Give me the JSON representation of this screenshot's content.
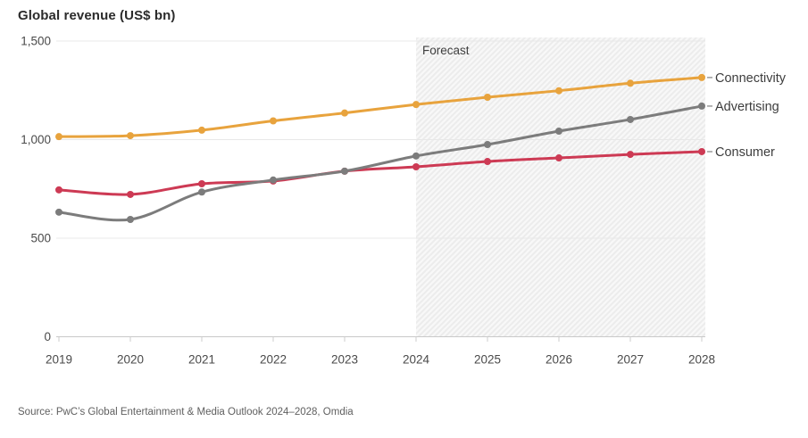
{
  "header": {
    "title": "Global revenue (US$ bn)"
  },
  "footer": {
    "source": "Source: PwC’s Global Entertainment & Media Outlook 2024–2028, Omdia"
  },
  "chart_data": {
    "type": "line",
    "title": "Global revenue (US$ bn)",
    "categories": [
      "2019",
      "2020",
      "2021",
      "2022",
      "2023",
      "2024",
      "2025",
      "2026",
      "2027",
      "2028"
    ],
    "series": [
      {
        "name": "Connectivity",
        "color": "#E8A33D",
        "values": [
          1015,
          1020,
          1048,
          1095,
          1135,
          1178,
          1215,
          1248,
          1286,
          1315
        ]
      },
      {
        "name": "Advertising",
        "color": "#7C7C7C",
        "values": [
          632,
          595,
          734,
          795,
          840,
          917,
          975,
          1043,
          1102,
          1170
        ]
      },
      {
        "name": "Consumer",
        "color": "#CD3A54",
        "values": [
          745,
          722,
          776,
          790,
          840,
          862,
          889,
          907,
          925,
          939
        ]
      }
    ],
    "y_ticks": [
      {
        "value": 0,
        "label": "0"
      },
      {
        "value": 500,
        "label": "500"
      },
      {
        "value": 1000,
        "label": "1,000"
      },
      {
        "value": 1500,
        "label": "1,500"
      }
    ],
    "ylim": [
      0,
      1500
    ],
    "xlabel": "",
    "ylabel": "Global revenue (US$ bn)",
    "grid": "horizontal",
    "legend_position": "right-end-labels",
    "forecast": {
      "label": "Forecast",
      "start_category": "2024"
    },
    "colors": {
      "grid_line": "#e8e8e8",
      "zero_line": "#c9c9c9",
      "tick_mark": "#cccccc",
      "axis_text": "#4a4a4a",
      "forecast_text": "#3f3f3f",
      "forecast_fill": "#f8f8f8",
      "forecast_hatch": "#ececec",
      "label_leader": "#9b9b9b",
      "series_label_text": "#3d3d3d"
    }
  }
}
